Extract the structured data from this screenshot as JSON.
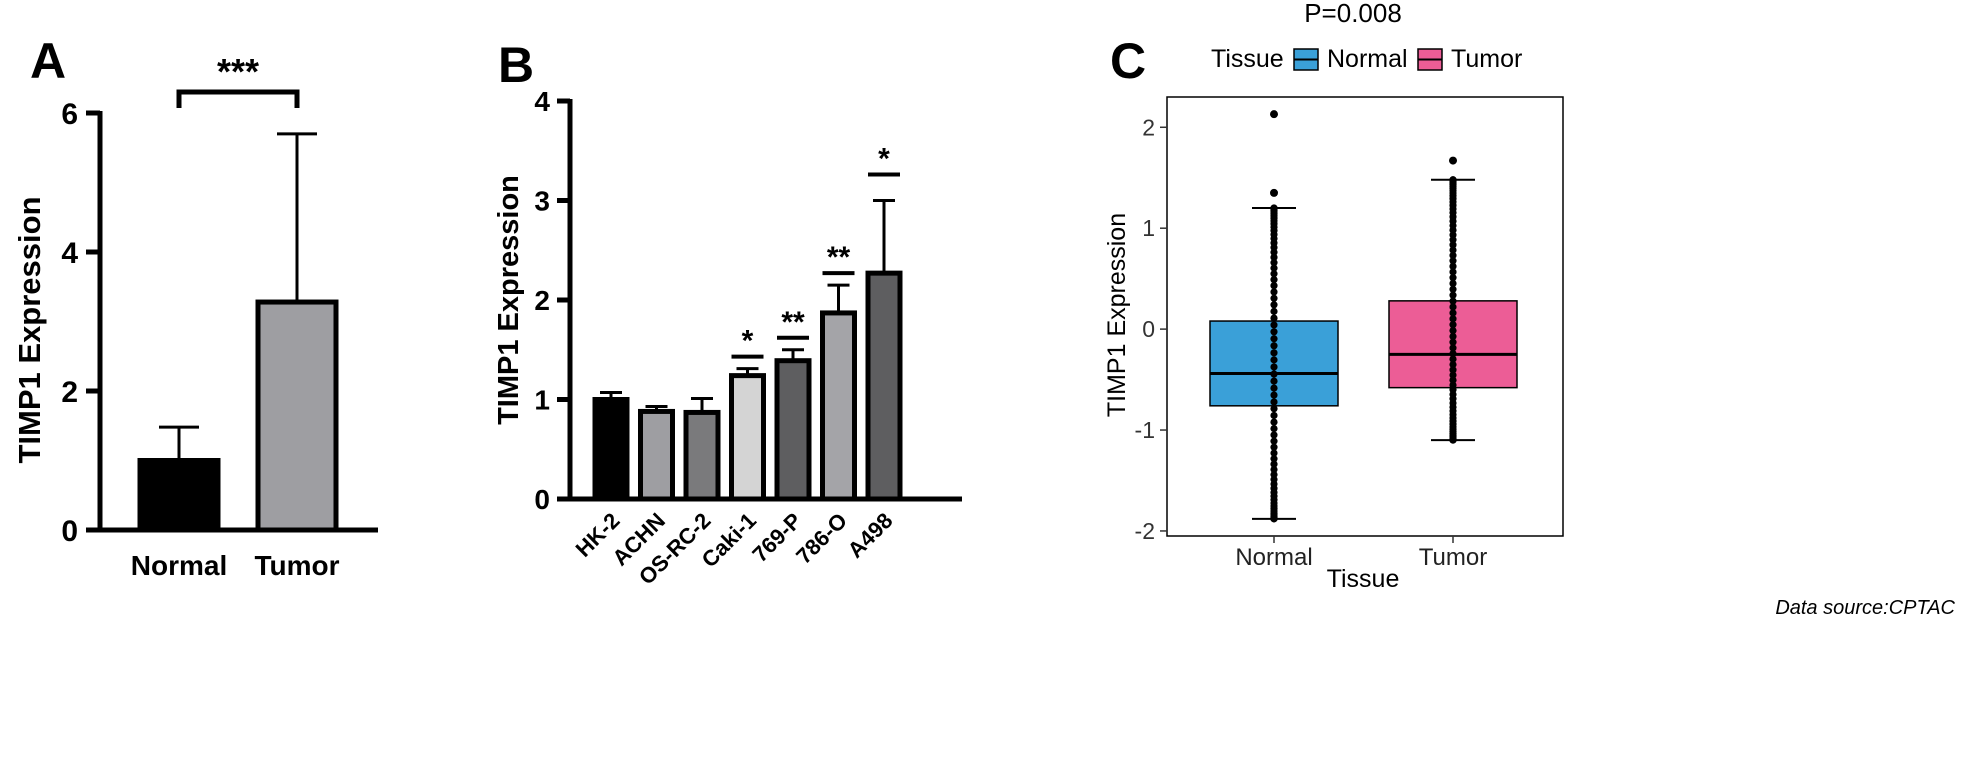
{
  "panels": [
    {
      "letter": "A",
      "chart_data": {
        "type": "bar",
        "categories": [
          "Normal",
          "Tumor"
        ],
        "values": [
          1.0,
          3.28
        ],
        "error_upper": [
          1.48,
          5.7
        ],
        "colors": [
          "#000000",
          "#9e9ea2"
        ],
        "ylabel": "TIMP1 Expression",
        "ylim": [
          0,
          6
        ],
        "yticks": [
          "0",
          "2",
          "4",
          "6"
        ],
        "significance": [
          {
            "between": [
              "Normal",
              "Tumor"
            ],
            "label": "***"
          }
        ]
      }
    },
    {
      "letter": "B",
      "chart_data": {
        "type": "bar",
        "categories": [
          "HK-2",
          "ACHN",
          "OS-RC-2",
          "Caki-1",
          "769-P",
          "786-O",
          "A498"
        ],
        "values": [
          1.0,
          0.88,
          0.87,
          1.24,
          1.39,
          1.87,
          2.27
        ],
        "error_upper": [
          1.07,
          0.93,
          1.01,
          1.31,
          1.5,
          2.15,
          3.0
        ],
        "significance": [
          "",
          "",
          "",
          "*",
          "**",
          "**",
          "*"
        ],
        "colors": [
          "#000000",
          "#9e9ea2",
          "#7a7a7c",
          "#d4d4d4",
          "#5e5e60",
          "#a4a4a8",
          "#5e5e60"
        ],
        "ylabel": "TIMP1 Expression",
        "ylim": [
          0,
          4
        ],
        "yticks": [
          "0",
          "1",
          "2",
          "3",
          "4"
        ]
      }
    },
    {
      "letter": "C",
      "chart_data": {
        "type": "box",
        "title": "P=0.008",
        "legend_title": "Tissue",
        "xlabel": "Tissue",
        "ylabel": "TIMP1 Expression",
        "ylim": [
          -2.05,
          2.3
        ],
        "yticks": [
          "-2",
          "-1",
          "0",
          "1",
          "2"
        ],
        "legend_position": "top",
        "groups": [
          {
            "name": "Normal",
            "color": "#3aa0d8",
            "q1": -0.76,
            "median": -0.44,
            "q3": 0.08,
            "whisker_low": -1.88,
            "whisker_high": 1.2,
            "outliers": [
              2.13,
              1.35
            ]
          },
          {
            "name": "Tumor",
            "color": "#ec5d96",
            "q1": -0.58,
            "median": -0.25,
            "q3": 0.28,
            "whisker_low": -1.1,
            "whisker_high": 1.48,
            "outliers": [
              1.67
            ]
          }
        ]
      }
    }
  ],
  "footer": {
    "source": "Data source:CPTAC"
  }
}
